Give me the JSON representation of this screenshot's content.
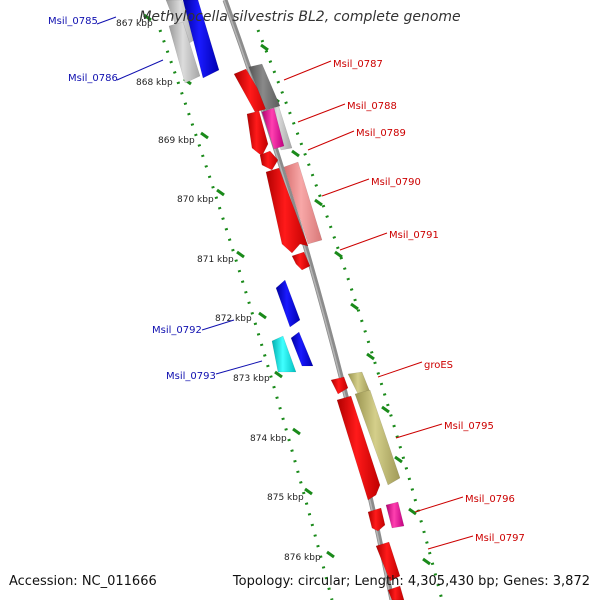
{
  "title": "Methylocella silvestris BL2, complete genome",
  "accession": "Accession: NC_011666",
  "stats": "Topology: circular; Length: 4,305,430 bp; Genes: 3,872",
  "ticks": [
    "867 kbp",
    "868 kbp",
    "869 kbp",
    "870 kbp",
    "871 kbp",
    "872 kbp",
    "873 kbp",
    "874 kbp",
    "875 kbp",
    "876 kbp"
  ],
  "colors": {
    "forward_label": "#cc0000",
    "reverse_label": "#1010b0",
    "backbone": "#8c8c8c",
    "track_dots": "#1a8a1a",
    "red": "#ee0000",
    "blue": "#0000ee",
    "cyan": "#00eeee",
    "pink": "#f28c8c",
    "magenta": "#ee1a9a",
    "olive": "#bdb76b",
    "gray": "#bdbdbd",
    "darkgray": "#707070"
  },
  "genes": [
    {
      "name": "Msil_0785",
      "strand": "reverse"
    },
    {
      "name": "Msil_0786",
      "strand": "reverse"
    },
    {
      "name": "Msil_0787",
      "strand": "forward"
    },
    {
      "name": "Msil_0788",
      "strand": "forward"
    },
    {
      "name": "Msil_0789",
      "strand": "forward"
    },
    {
      "name": "Msil_0790",
      "strand": "forward"
    },
    {
      "name": "Msil_0791",
      "strand": "forward"
    },
    {
      "name": "Msil_0792",
      "strand": "reverse"
    },
    {
      "name": "Msil_0793",
      "strand": "reverse"
    },
    {
      "name": "groES",
      "strand": "forward"
    },
    {
      "name": "Msil_0795",
      "strand": "forward"
    },
    {
      "name": "Msil_0796",
      "strand": "forward"
    },
    {
      "name": "Msil_0797",
      "strand": "forward"
    }
  ]
}
